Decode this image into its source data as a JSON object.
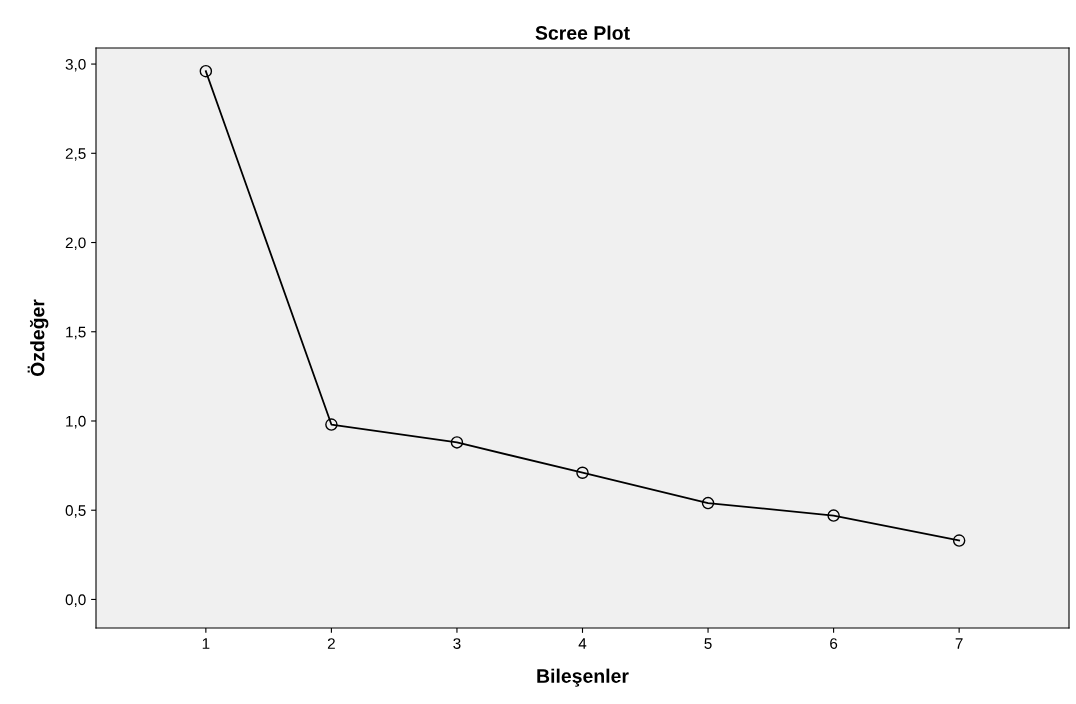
{
  "chart_data": {
    "type": "line",
    "title": "Scree Plot",
    "xlabel": "Bileşenler",
    "ylabel": "Özdeğer",
    "x": [
      1,
      2,
      3,
      4,
      5,
      6,
      7
    ],
    "series": [
      {
        "color": "#000000",
        "values": [
          2.96,
          0.98,
          0.88,
          0.71,
          0.54,
          0.47,
          0.33
        ]
      }
    ],
    "xlim": [
      0.125,
      7.875
    ],
    "xticks": [
      1,
      2,
      3,
      4,
      5,
      6,
      7
    ],
    "ylim": [
      -0.16,
      3.09
    ],
    "yticks": [
      {
        "value": 0,
        "label": "0,0"
      },
      {
        "value": 0.5,
        "label": "0,5"
      },
      {
        "value": 1,
        "label": "1,0"
      },
      {
        "value": 1.5,
        "label": "1,5"
      },
      {
        "value": 2,
        "label": "2,0"
      },
      {
        "value": 2.5,
        "label": "2,5"
      },
      {
        "value": 3,
        "label": "3,0"
      }
    ],
    "marker": "circle",
    "line_style": "solid",
    "grid": false,
    "legend": false
  }
}
